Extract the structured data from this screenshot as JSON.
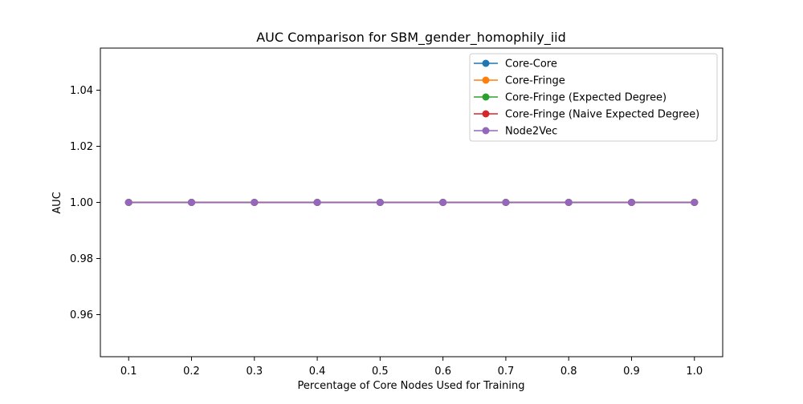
{
  "chart_data": {
    "type": "line",
    "title": "AUC Comparison for SBM_gender_homophily_iid",
    "xlabel": "Percentage of Core Nodes Used for Training",
    "ylabel": "AUC",
    "x": [
      0.1,
      0.2,
      0.3,
      0.4,
      0.5,
      0.6,
      0.7,
      0.8,
      0.9,
      1.0
    ],
    "x_tick_labels": [
      "0.1",
      "0.2",
      "0.3",
      "0.4",
      "0.5",
      "0.6",
      "0.7",
      "0.8",
      "0.9",
      "1.0"
    ],
    "xlim": [
      0.055,
      1.045
    ],
    "y_ticks": [
      0.96,
      0.98,
      1.0,
      1.02,
      1.04
    ],
    "y_tick_labels": [
      "0.96",
      "0.98",
      "1.00",
      "1.02",
      "1.04"
    ],
    "ylim": [
      0.945,
      1.055
    ],
    "grid": false,
    "legend_position": "top-right",
    "marker": "circle",
    "series": [
      {
        "name": "Core-Core",
        "color": "#1f77b4",
        "values": [
          1.0,
          1.0,
          1.0,
          1.0,
          1.0,
          1.0,
          1.0,
          1.0,
          1.0,
          1.0
        ]
      },
      {
        "name": "Core-Fringe",
        "color": "#ff7f0e",
        "values": [
          1.0,
          1.0,
          1.0,
          1.0,
          1.0,
          1.0,
          1.0,
          1.0,
          1.0,
          1.0
        ]
      },
      {
        "name": "Core-Fringe (Expected Degree)",
        "color": "#2ca02c",
        "values": [
          1.0,
          1.0,
          1.0,
          1.0,
          1.0,
          1.0,
          1.0,
          1.0,
          1.0,
          1.0
        ]
      },
      {
        "name": "Core-Fringe (Naive Expected Degree)",
        "color": "#d62728",
        "values": [
          1.0,
          1.0,
          1.0,
          1.0,
          1.0,
          1.0,
          1.0,
          1.0,
          1.0,
          1.0
        ]
      },
      {
        "name": "Node2Vec",
        "color": "#9467bd",
        "values": [
          1.0,
          1.0,
          1.0,
          1.0,
          1.0,
          1.0,
          1.0,
          1.0,
          1.0,
          1.0
        ]
      }
    ]
  }
}
